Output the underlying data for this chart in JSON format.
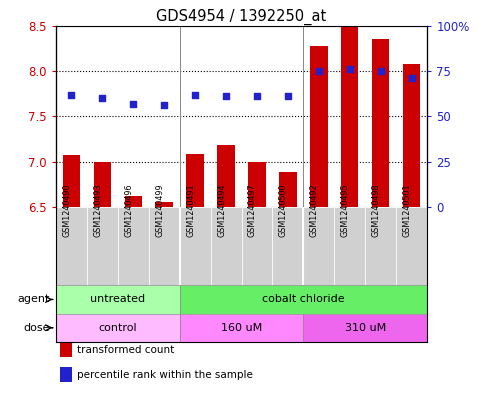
{
  "title": "GDS4954 / 1392250_at",
  "samples": [
    "GSM1240490",
    "GSM1240493",
    "GSM1240496",
    "GSM1240499",
    "GSM1240491",
    "GSM1240494",
    "GSM1240497",
    "GSM1240500",
    "GSM1240492",
    "GSM1240495",
    "GSM1240498",
    "GSM1240501"
  ],
  "transformed_count": [
    7.07,
    7.0,
    6.62,
    6.55,
    7.08,
    7.18,
    7.0,
    6.88,
    8.28,
    8.5,
    8.35,
    8.08
  ],
  "percentile_rank": [
    62,
    60,
    57,
    56,
    62,
    61,
    61,
    61,
    75,
    76,
    75,
    71
  ],
  "ymin": 6.5,
  "ymax": 8.5,
  "yticks": [
    6.5,
    7.0,
    7.5,
    8.0,
    8.5
  ],
  "right_yticks": [
    0,
    25,
    50,
    75,
    100
  ],
  "bar_color": "#cc0000",
  "dot_color": "#2222cc",
  "agent_groups": [
    {
      "label": "untreated",
      "start": 0,
      "end": 4,
      "color": "#aaffaa"
    },
    {
      "label": "cobalt chloride",
      "start": 4,
      "end": 12,
      "color": "#66ee66"
    }
  ],
  "dose_groups": [
    {
      "label": "control",
      "start": 0,
      "end": 4,
      "color": "#ffbbff"
    },
    {
      "label": "160 uM",
      "start": 4,
      "end": 8,
      "color": "#ff88ff"
    },
    {
      "label": "310 uM",
      "start": 8,
      "end": 12,
      "color": "#ee66ee"
    }
  ],
  "legend_items": [
    {
      "color": "#cc0000",
      "label": "transformed count"
    },
    {
      "color": "#2222cc",
      "label": "percentile rank within the sample"
    }
  ],
  "tick_label_color_left": "#cc0000",
  "tick_label_color_right": "#2222cc",
  "bar_width": 0.55,
  "dot_size": 22,
  "group_boundaries": [
    3.5,
    7.5
  ],
  "group_boundary_color": "#888888"
}
